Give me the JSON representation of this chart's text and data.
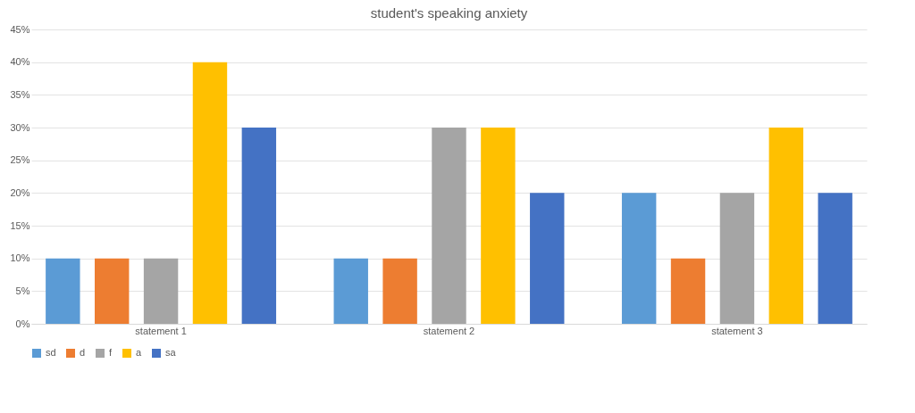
{
  "chart_data": {
    "type": "bar",
    "title": "student's speaking anxiety",
    "categories": [
      "statement 1",
      "statement 2",
      "statement 3"
    ],
    "series": [
      {
        "name": "sd",
        "color": "#5b9bd5",
        "values": [
          10,
          10,
          20
        ]
      },
      {
        "name": "d",
        "color": "#ed7d31",
        "values": [
          10,
          10,
          10
        ]
      },
      {
        "name": "f",
        "color": "#a5a5a5",
        "values": [
          10,
          30,
          20
        ]
      },
      {
        "name": "a",
        "color": "#ffc000",
        "values": [
          40,
          30,
          30
        ]
      },
      {
        "name": "sa",
        "color": "#4472c4",
        "values": [
          30,
          20,
          20
        ]
      }
    ],
    "ylim": [
      0,
      45
    ],
    "yticks": [
      {
        "value": 0,
        "label": "0%"
      },
      {
        "value": 5,
        "label": "5%"
      },
      {
        "value": 10,
        "label": "10%"
      },
      {
        "value": 15,
        "label": "15%"
      },
      {
        "value": 20,
        "label": "20%"
      },
      {
        "value": 25,
        "label": "25%"
      },
      {
        "value": 30,
        "label": "30%"
      },
      {
        "value": 35,
        "label": "35%"
      },
      {
        "value": 40,
        "label": "40%"
      },
      {
        "value": 45,
        "label": "45%"
      }
    ],
    "grid": "y",
    "legend": "bottom"
  }
}
